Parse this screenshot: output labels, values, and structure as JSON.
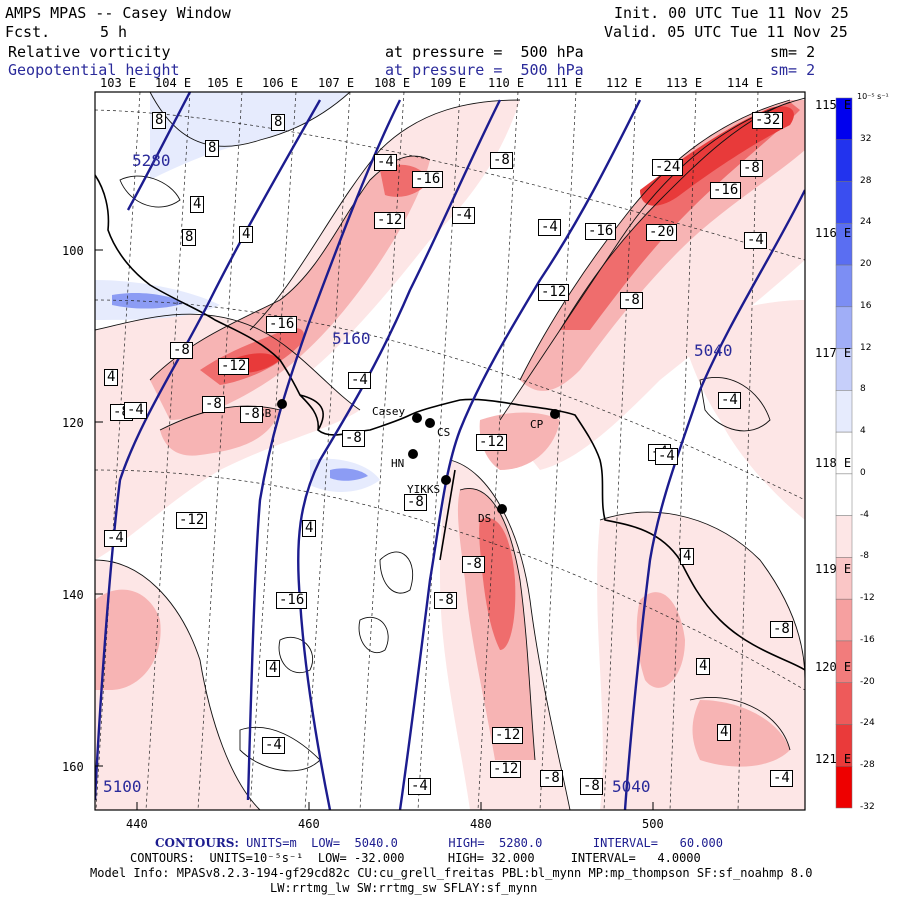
{
  "header": {
    "model": "AMPS MPAS -- Casey Window",
    "fcst_label": "Fcst.",
    "fcst_value": "5 h",
    "init": "Init. 00 UTC Tue 11 Nov 25",
    "valid": "Valid. 05 UTC Tue 11 Nov 25",
    "field1_name": "Relative vorticity",
    "field1_level": "at pressure =  500 hPa",
    "field1_sm": "sm= 2",
    "field2_name": "Geopotential height",
    "field2_level": "at pressure =  500 hPa",
    "field2_sm": "sm= 2"
  },
  "axes": {
    "lon_labels": [
      "103 E",
      "104 E",
      "105 E",
      "106 E",
      "107 E",
      "108 E",
      "109 E",
      "110 E",
      "111 E",
      "112 E",
      "113 E",
      "114 E"
    ],
    "y_ticks": [
      "100",
      "120",
      "140",
      "160"
    ],
    "x_ticks": [
      "440",
      "460",
      "480",
      "500"
    ],
    "lat_right": [
      "115 E",
      "116 E",
      "117 E",
      "118 E",
      "119 E",
      "120 E",
      "121 E"
    ]
  },
  "stations": [
    {
      "name": "SB"
    },
    {
      "name": "Casey"
    },
    {
      "name": "CS"
    },
    {
      "name": "HN"
    },
    {
      "name": "YIKKS"
    },
    {
      "name": "DS"
    },
    {
      "name": "CP"
    }
  ],
  "height_labels": [
    "5280",
    "5160",
    "5040",
    "5100",
    "5040"
  ],
  "vort_labels": [
    "8",
    "8",
    "4",
    "8",
    "8",
    "4",
    "-4",
    "-16",
    "-4",
    "-12",
    "-4",
    "-8",
    "-4",
    "-16",
    "-24",
    "-32",
    "-16",
    "-20",
    "-8",
    "-12",
    "-8",
    "-16",
    "-8",
    "-12",
    "-8",
    "-4",
    "-12",
    "-4",
    "4",
    "-8",
    "-8",
    "-8",
    "-12",
    "-4",
    "-4",
    "-8",
    "4",
    "4",
    "-16",
    "-8",
    "-8",
    "4",
    "4",
    "-4",
    "-8",
    "4",
    "-12",
    "-12",
    "-8",
    "-8",
    "-4",
    "-4",
    "-4",
    "-4"
  ],
  "colorbar": {
    "unit": "10⁻⁵ s⁻¹",
    "ticks": [
      "32",
      "28",
      "24",
      "20",
      "16",
      "12",
      "8",
      "4",
      "0",
      "-4",
      "-8",
      "-12",
      "-16",
      "-20",
      "-24",
      "-28",
      "-32"
    ],
    "colors": [
      "#0000ee",
      "#2233ee",
      "#3a4ef0",
      "#5a6ef2",
      "#7c8ef4",
      "#a0aef7",
      "#c6cffa",
      "#e6ebfd",
      "#ffffff",
      "#ffffff",
      "#fde6e6",
      "#fac6c6",
      "#f6a0a0",
      "#f27c7c",
      "#ee5a5a",
      "#ea3a3a",
      "#ee0000"
    ]
  },
  "footer": {
    "line1_label": "CONTOURS:",
    "line1_units": "UNITS=m  LOW=  5040.0",
    "line1_high": "HIGH=  5280.0",
    "line1_interval": "INTERVAL=   60.000",
    "line2": "CONTOURS:  UNITS=10⁻⁵s⁻¹  LOW= -32.000      HIGH= 32.000     INTERVAL=   4.0000",
    "line3": "Model Info: MPASv8.2.3-194-gf29cd82c CU:cu_grell_freitas PBL:bl_mynn MP:mp_thompson SF:sf_noahmp 8.0",
    "line4": "LW:rrtmg_lw SW:rrtmg_sw SFLAY:sf_mynn"
  }
}
